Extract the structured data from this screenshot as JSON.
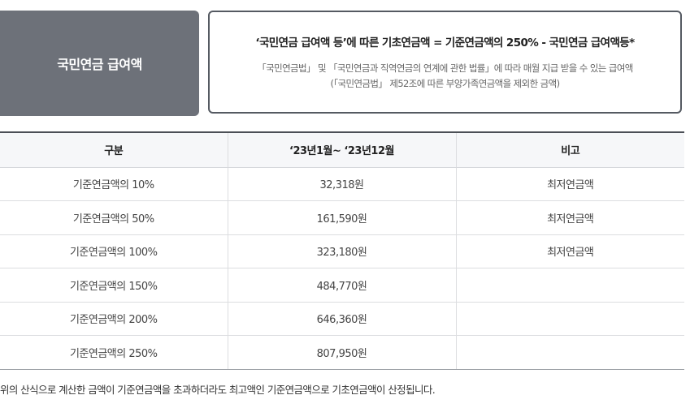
{
  "label_box": {
    "text": "국민연금 급여액"
  },
  "formula_box": {
    "formula": "‘국민연금 급여액 등’에 따른 기초연금액 = 기준연금액의 250% - 국민연금 급여액등*",
    "note_line1": "「국민연금법」 및 「국민연금과 직역연금의 연계에 관한 법률」에 따라 매월 지급 받을 수 있는 급여액",
    "note_line2": "(「국민연금법」 제52조에 따른 부양가족연금액을 제외한 금액)"
  },
  "table": {
    "headers": [
      "구분",
      "‘23년1월~ ‘23년12월",
      "비고"
    ],
    "rows": [
      [
        "기준연금액의 10%",
        "32,318원",
        "최저연금액"
      ],
      [
        "기준연금액의 50%",
        "161,590원",
        "최저연금액"
      ],
      [
        "기준연금액의 100%",
        "323,180원",
        "최저연금액"
      ],
      [
        "기준연금액의 150%",
        "484,770원",
        ""
      ],
      [
        "기준연금액의 200%",
        "646,360원",
        ""
      ],
      [
        "기준연금액의 250%",
        "807,950원",
        ""
      ]
    ]
  },
  "footnote": "위의 산식으로 계산한 금액이 기준연금액을 초과하더라도 최고액인 기준연금액으로 기초연금액이 산정됩니다."
}
